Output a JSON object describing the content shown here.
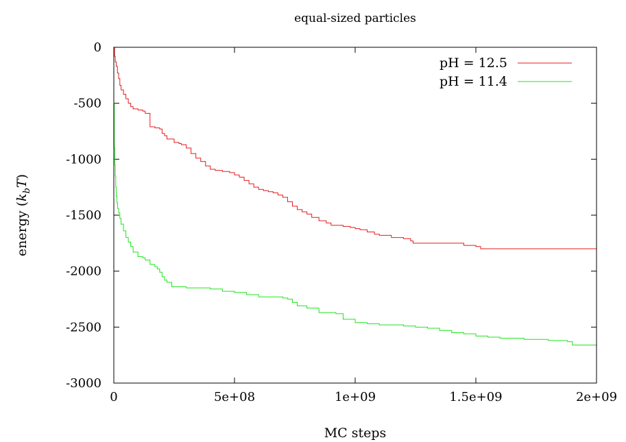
{
  "chart_data": {
    "type": "line",
    "title": "equal-sized particles",
    "xlabel": "MC steps",
    "ylabel": "energy (k_b T)",
    "ylabel_parts": {
      "prefix": "energy (",
      "k": "k",
      "sub": "b",
      "T": "T",
      "suffix": ")"
    },
    "xlim": [
      0,
      2000000000
    ],
    "ylim": [
      -3000,
      0
    ],
    "xticks": [
      0,
      500000000,
      1000000000,
      1500000000,
      2000000000
    ],
    "xtick_labels": [
      "0",
      "5e+08",
      "1e+09",
      "1.5e+09",
      "2e+09"
    ],
    "yticks": [
      0,
      -500,
      -1000,
      -1500,
      -2000,
      -2500,
      -3000
    ],
    "ytick_labels": [
      "0",
      "-500",
      "-1000",
      "-1500",
      "-2000",
      "-2500",
      "-3000"
    ],
    "grid": false,
    "legend_position": "top-right",
    "series": [
      {
        "name": "pH = 12.5",
        "color": "#e41a1c",
        "x": [
          0,
          3000000,
          6000000,
          10000000,
          15000000,
          20000000,
          25000000,
          30000000,
          40000000,
          50000000,
          60000000,
          70000000,
          80000000,
          100000000,
          120000000,
          130000000,
          150000000,
          170000000,
          190000000,
          200000000,
          210000000,
          220000000,
          250000000,
          270000000,
          280000000,
          300000000,
          320000000,
          340000000,
          360000000,
          380000000,
          400000000,
          420000000,
          450000000,
          480000000,
          500000000,
          520000000,
          540000000,
          560000000,
          580000000,
          600000000,
          620000000,
          640000000,
          660000000,
          680000000,
          700000000,
          720000000,
          740000000,
          760000000,
          780000000,
          800000000,
          820000000,
          850000000,
          880000000,
          900000000,
          950000000,
          980000000,
          1000000000,
          1020000000,
          1050000000,
          1080000000,
          1100000000,
          1150000000,
          1200000000,
          1230000000,
          1240000000,
          1300000000,
          1400000000,
          1450000000,
          1470000000,
          1500000000,
          1520000000,
          1550000000,
          1600000000,
          1700000000,
          1800000000,
          1900000000,
          2000000000
        ],
        "y": [
          0,
          -80,
          -130,
          -170,
          -230,
          -280,
          -340,
          -380,
          -420,
          -460,
          -500,
          -530,
          -550,
          -560,
          -570,
          -590,
          -710,
          -720,
          -730,
          -770,
          -790,
          -820,
          -850,
          -860,
          -870,
          -900,
          -950,
          -990,
          -1020,
          -1060,
          -1090,
          -1100,
          -1110,
          -1120,
          -1140,
          -1160,
          -1190,
          -1220,
          -1250,
          -1270,
          -1280,
          -1290,
          -1300,
          -1320,
          -1340,
          -1380,
          -1420,
          -1450,
          -1470,
          -1490,
          -1520,
          -1550,
          -1570,
          -1590,
          -1600,
          -1610,
          -1620,
          -1630,
          -1650,
          -1670,
          -1680,
          -1700,
          -1710,
          -1730,
          -1750,
          -1750,
          -1750,
          -1770,
          -1770,
          -1780,
          -1800,
          -1800,
          -1800,
          -1800,
          -1800,
          -1800,
          -1800
        ]
      },
      {
        "name": "pH = 11.4",
        "color": "#1ee31e",
        "x": [
          0,
          2000000,
          4000000,
          6000000,
          8000000,
          10000000,
          13000000,
          16000000,
          20000000,
          25000000,
          30000000,
          40000000,
          50000000,
          60000000,
          70000000,
          80000000,
          100000000,
          120000000,
          130000000,
          150000000,
          170000000,
          180000000,
          190000000,
          200000000,
          210000000,
          220000000,
          240000000,
          300000000,
          380000000,
          400000000,
          450000000,
          500000000,
          550000000,
          600000000,
          680000000,
          700000000,
          720000000,
          740000000,
          760000000,
          800000000,
          850000000,
          900000000,
          920000000,
          950000000,
          1000000000,
          1050000000,
          1100000000,
          1200000000,
          1250000000,
          1300000000,
          1350000000,
          1400000000,
          1450000000,
          1500000000,
          1550000000,
          1600000000,
          1700000000,
          1800000000,
          1850000000,
          1880000000,
          1900000000,
          2000000000
        ],
        "y": [
          -500,
          -900,
          -1050,
          -1150,
          -1250,
          -1330,
          -1390,
          -1440,
          -1480,
          -1530,
          -1580,
          -1640,
          -1700,
          -1740,
          -1780,
          -1830,
          -1870,
          -1880,
          -1900,
          -1940,
          -1960,
          -1980,
          -2010,
          -2050,
          -2080,
          -2100,
          -2140,
          -2150,
          -2150,
          -2160,
          -2180,
          -2190,
          -2210,
          -2230,
          -2230,
          -2240,
          -2250,
          -2280,
          -2310,
          -2330,
          -2370,
          -2370,
          -2380,
          -2430,
          -2460,
          -2470,
          -2480,
          -2490,
          -2500,
          -2510,
          -2530,
          -2550,
          -2560,
          -2580,
          -2590,
          -2600,
          -2610,
          -2620,
          -2620,
          -2630,
          -2660,
          -2660
        ]
      }
    ]
  }
}
